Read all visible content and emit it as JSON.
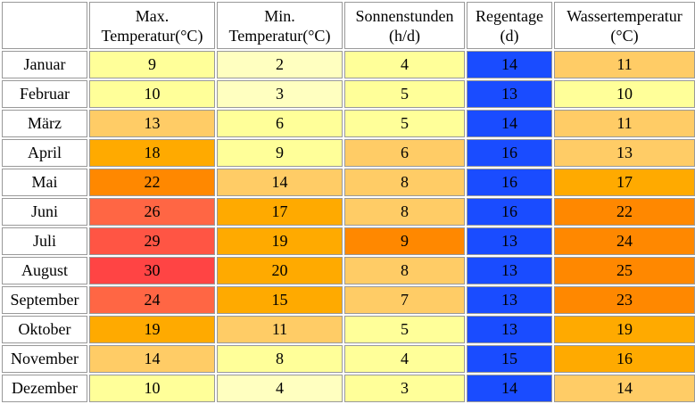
{
  "table": {
    "headers": [
      [
        "",
        ""
      ],
      [
        "Max.",
        "Temperatur(°C)"
      ],
      [
        "Min.",
        "Temperatur(°C)"
      ],
      [
        "Sonnenstunden",
        "(h/d)"
      ],
      [
        "Regentage",
        "(d)"
      ],
      [
        "Wassertemperatur",
        "(°C)"
      ]
    ],
    "rows": [
      {
        "month": "Januar",
        "values": [
          "9",
          "2",
          "4",
          "14",
          "11"
        ],
        "colors": [
          "#ffff99",
          "#ffffc0",
          "#ffff99",
          "#1a4cff",
          "#ffcc66"
        ]
      },
      {
        "month": "Februar",
        "values": [
          "10",
          "3",
          "5",
          "13",
          "10"
        ],
        "colors": [
          "#ffff99",
          "#ffffc0",
          "#ffff99",
          "#1a4cff",
          "#ffff99"
        ]
      },
      {
        "month": "März",
        "values": [
          "13",
          "6",
          "5",
          "14",
          "11"
        ],
        "colors": [
          "#ffcc66",
          "#ffff99",
          "#ffff99",
          "#1a4cff",
          "#ffcc66"
        ]
      },
      {
        "month": "April",
        "values": [
          "18",
          "9",
          "6",
          "16",
          "13"
        ],
        "colors": [
          "#ffaa00",
          "#ffff99",
          "#ffcc66",
          "#1a4cff",
          "#ffcc66"
        ]
      },
      {
        "month": "Mai",
        "values": [
          "22",
          "14",
          "8",
          "16",
          "17"
        ],
        "colors": [
          "#ff8800",
          "#ffcc66",
          "#ffcc66",
          "#1a4cff",
          "#ffaa00"
        ]
      },
      {
        "month": "Juni",
        "values": [
          "26",
          "17",
          "8",
          "16",
          "22"
        ],
        "colors": [
          "#ff6644",
          "#ffaa00",
          "#ffcc66",
          "#1a4cff",
          "#ff8800"
        ]
      },
      {
        "month": "Juli",
        "values": [
          "29",
          "19",
          "9",
          "13",
          "24"
        ],
        "colors": [
          "#ff5544",
          "#ffaa00",
          "#ff8800",
          "#1a4cff",
          "#ff8800"
        ]
      },
      {
        "month": "August",
        "values": [
          "30",
          "20",
          "8",
          "13",
          "25"
        ],
        "colors": [
          "#ff4444",
          "#ffaa00",
          "#ffcc66",
          "#1a4cff",
          "#ff8800"
        ]
      },
      {
        "month": "September",
        "values": [
          "24",
          "15",
          "7",
          "13",
          "23"
        ],
        "colors": [
          "#ff6644",
          "#ffaa00",
          "#ffcc66",
          "#1a4cff",
          "#ff8800"
        ]
      },
      {
        "month": "Oktober",
        "values": [
          "19",
          "11",
          "5",
          "13",
          "19"
        ],
        "colors": [
          "#ffaa00",
          "#ffcc66",
          "#ffff99",
          "#1a4cff",
          "#ffaa00"
        ]
      },
      {
        "month": "November",
        "values": [
          "14",
          "8",
          "4",
          "15",
          "16"
        ],
        "colors": [
          "#ffcc66",
          "#ffff99",
          "#ffff99",
          "#1a4cff",
          "#ffaa00"
        ]
      },
      {
        "month": "Dezember",
        "values": [
          "10",
          "4",
          "3",
          "14",
          "14"
        ],
        "colors": [
          "#ffff99",
          "#ffffc0",
          "#ffff99",
          "#1a4cff",
          "#ffcc66"
        ]
      }
    ]
  }
}
